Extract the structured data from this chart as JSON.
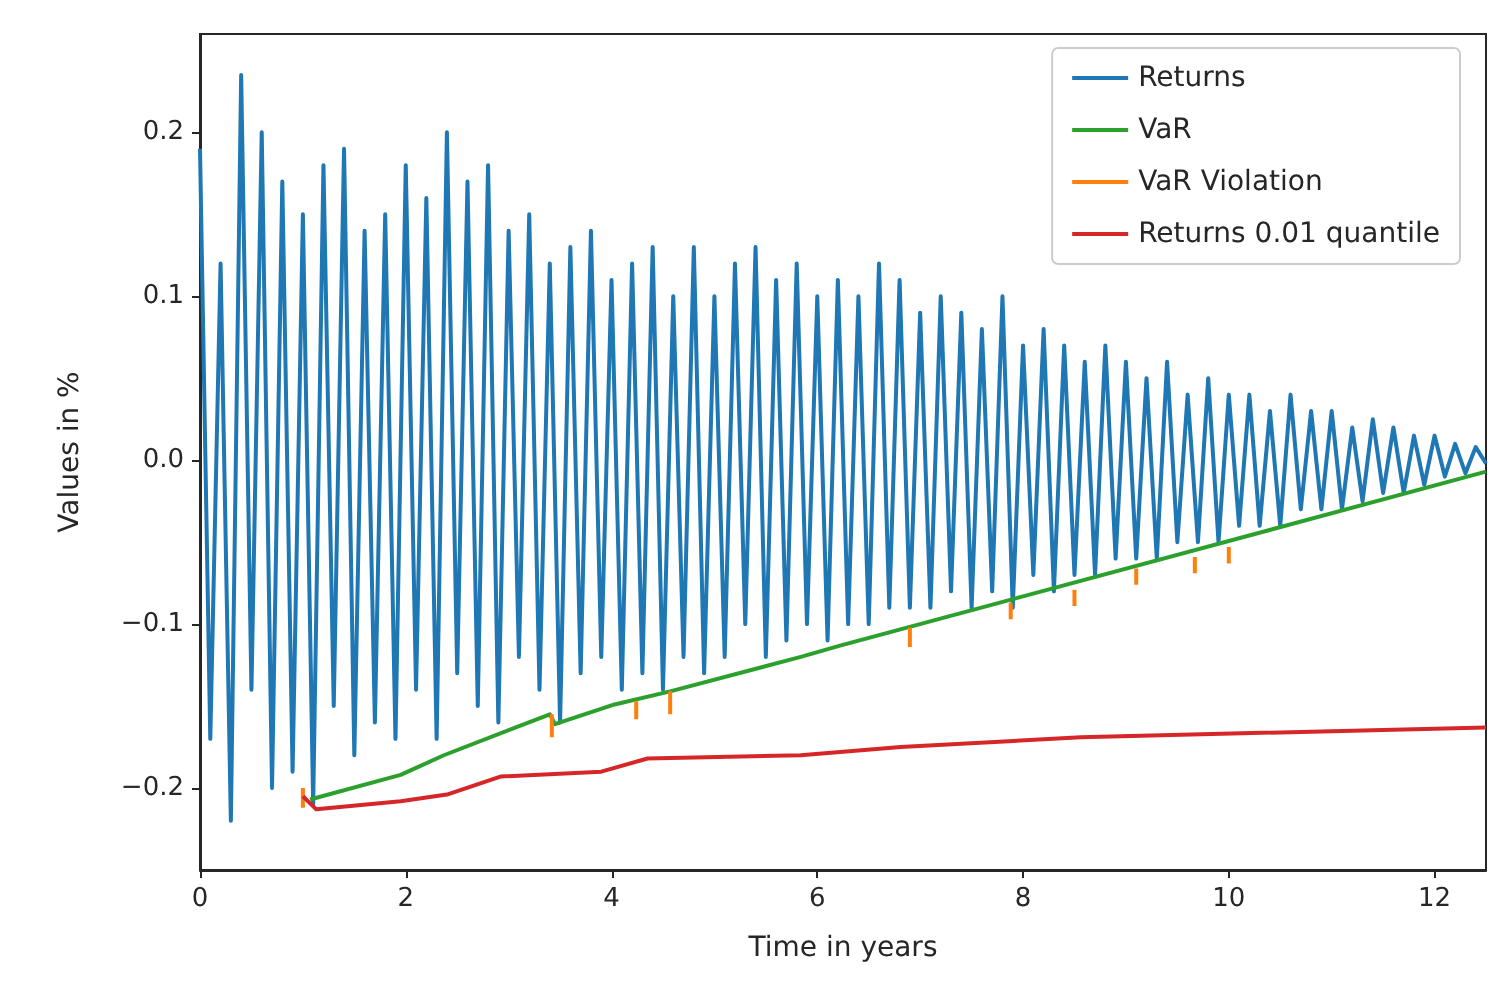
{
  "chart_data": {
    "type": "line",
    "xlabel": "Time in years",
    "ylabel": "Values in %",
    "xlim": [
      0,
      12.5
    ],
    "ylim": [
      -0.25,
      0.26
    ],
    "xticks": [
      0,
      2,
      4,
      6,
      8,
      10,
      12
    ],
    "yticks": [
      {
        "value": -0.2,
        "label": "−0.2"
      },
      {
        "value": -0.1,
        "label": "−0.1"
      },
      {
        "value": 0,
        "label": "0.0"
      },
      {
        "value": 0.1,
        "label": "0.1"
      },
      {
        "value": 0.2,
        "label": "0.2"
      }
    ],
    "grid": false,
    "legend": "top right",
    "marker": "none",
    "line_style": "solid",
    "series": [
      {
        "name": "Returns",
        "color": "#1f77b4",
        "x": [
          0,
          0.1,
          0.2,
          0.3,
          0.4,
          0.5,
          0.6,
          0.7,
          0.8,
          0.9,
          1,
          1.1,
          1.2,
          1.3,
          1.4,
          1.5,
          1.6,
          1.7,
          1.8,
          1.9,
          2,
          2.1,
          2.2,
          2.3,
          2.4,
          2.5,
          2.6,
          2.7,
          2.8,
          2.9,
          3,
          3.1,
          3.2,
          3.3,
          3.4,
          3.5,
          3.6,
          3.7,
          3.8,
          3.9,
          4,
          4.1,
          4.2,
          4.3,
          4.4,
          4.5,
          4.6,
          4.7,
          4.8,
          4.9,
          5,
          5.1,
          5.2,
          5.3,
          5.4,
          5.5,
          5.6,
          5.7,
          5.8,
          5.9,
          6,
          6.1,
          6.2,
          6.3,
          6.4,
          6.5,
          6.6,
          6.7,
          6.8,
          6.9,
          7,
          7.1,
          7.2,
          7.3,
          7.4,
          7.5,
          7.6,
          7.7,
          7.8,
          7.9,
          8,
          8.1,
          8.2,
          8.3,
          8.4,
          8.5,
          8.6,
          8.7,
          8.8,
          8.9,
          9,
          9.1,
          9.2,
          9.3,
          9.4,
          9.5,
          9.6,
          9.7,
          9.8,
          9.9,
          10,
          10.1,
          10.2,
          10.3,
          10.4,
          10.5,
          10.6,
          10.7,
          10.8,
          10.9,
          11,
          11.1,
          11.2,
          11.3,
          11.4,
          11.5,
          11.6,
          11.7,
          11.8,
          11.9,
          12,
          12.1,
          12.2,
          12.3,
          12.4,
          12.5
        ],
        "values": [
          0.19,
          -0.17,
          0.12,
          -0.22,
          0.235,
          -0.14,
          0.2,
          -0.2,
          0.17,
          -0.19,
          0.15,
          -0.21,
          0.18,
          -0.15,
          0.19,
          -0.18,
          0.14,
          -0.16,
          0.15,
          -0.17,
          0.18,
          -0.14,
          0.16,
          -0.17,
          0.2,
          -0.13,
          0.17,
          -0.15,
          0.18,
          -0.16,
          0.14,
          -0.12,
          0.15,
          -0.14,
          0.12,
          -0.16,
          0.13,
          -0.13,
          0.14,
          -0.12,
          0.11,
          -0.14,
          0.12,
          -0.13,
          0.13,
          -0.14,
          0.1,
          -0.12,
          0.13,
          -0.13,
          0.1,
          -0.12,
          0.12,
          -0.1,
          0.13,
          -0.12,
          0.11,
          -0.11,
          0.12,
          -0.1,
          0.1,
          -0.11,
          0.11,
          -0.1,
          0.1,
          -0.1,
          0.12,
          -0.09,
          0.11,
          -0.09,
          0.09,
          -0.09,
          0.1,
          -0.08,
          0.09,
          -0.09,
          0.08,
          -0.08,
          0.1,
          -0.09,
          0.07,
          -0.07,
          0.08,
          -0.08,
          0.07,
          -0.07,
          0.06,
          -0.07,
          0.07,
          -0.06,
          0.06,
          -0.06,
          0.05,
          -0.06,
          0.06,
          -0.05,
          0.04,
          -0.05,
          0.05,
          -0.05,
          0.04,
          -0.04,
          0.04,
          -0.04,
          0.03,
          -0.04,
          0.04,
          -0.03,
          0.03,
          -0.03,
          0.03,
          -0.03,
          0.02,
          -0.025,
          0.025,
          -0.02,
          0.02,
          -0.02,
          0.015,
          -0.015,
          0.015,
          -0.01,
          0.01,
          -0.008,
          0.008,
          -0.002
        ]
      },
      {
        "name": "VaR",
        "color": "#2ca02c",
        "x": [
          1.07,
          1.95,
          2.37,
          3.4,
          3.45,
          4.03,
          4.57,
          5.84,
          6.23,
          12.5
        ],
        "values": [
          -0.207,
          -0.192,
          -0.18,
          -0.155,
          -0.161,
          -0.149,
          -0.141,
          -0.12,
          -0.113,
          -0.007
        ]
      },
      {
        "name": "VaR Violation",
        "color": "#ff7f0e",
        "x": [
          1.0,
          1.0,
          null,
          3.42,
          3.42,
          null,
          4.24,
          4.24,
          null,
          4.57,
          4.57,
          null,
          6.9,
          6.9,
          null,
          7.88,
          7.88,
          null,
          8.5,
          8.5,
          null,
          9.1,
          9.1,
          null,
          9.67,
          9.67,
          null,
          10.0,
          10.0
        ],
        "values": [
          -0.2,
          -0.212,
          null,
          -0.155,
          -0.169,
          null,
          -0.147,
          -0.158,
          null,
          -0.141,
          -0.155,
          null,
          -0.102,
          -0.114,
          null,
          -0.087,
          -0.097,
          null,
          -0.079,
          -0.089,
          null,
          -0.066,
          -0.076,
          null,
          -0.059,
          -0.069,
          null,
          -0.053,
          -0.063
        ]
      },
      {
        "name": "Returns 0.01 quantile",
        "color": "#d62728",
        "x": [
          1.0,
          1.13,
          1.95,
          2.4,
          2.92,
          3.9,
          4.35,
          5.84,
          6.81,
          8.56,
          12.5
        ],
        "values": [
          -0.205,
          -0.213,
          -0.208,
          -0.204,
          -0.193,
          -0.19,
          -0.182,
          -0.18,
          -0.175,
          -0.169,
          -0.163
        ]
      }
    ]
  }
}
